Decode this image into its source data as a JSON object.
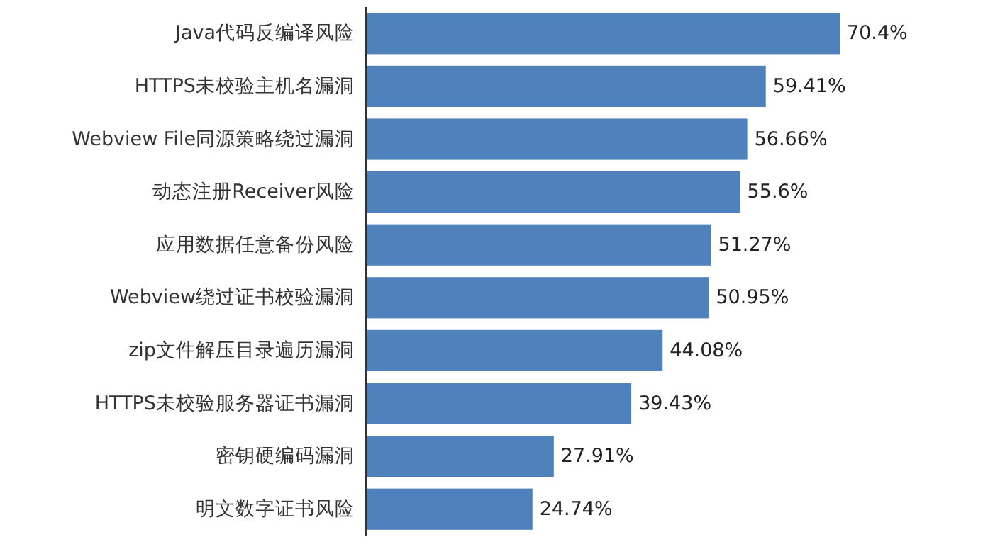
{
  "chart_data": {
    "type": "bar",
    "orientation": "horizontal",
    "categories": [
      "Java代码反编译风险",
      "HTTPS未校验主机名漏洞",
      "Webview File同源策略绕过漏洞",
      "动态注册Receiver风险",
      "应用数据任意备份风险",
      "Webview绕过证书校验漏洞",
      "zip文件解压目录遍历漏洞",
      "HTTPS未校验服务器证书漏洞",
      "密钥硬编码漏洞",
      "明文数字证书风险"
    ],
    "values": [
      70.4,
      59.41,
      56.66,
      55.6,
      51.27,
      50.95,
      44.08,
      39.43,
      27.91,
      24.74
    ],
    "value_labels": [
      "70.4%",
      "59.41%",
      "56.66%",
      "55.6%",
      "51.27%",
      "50.95%",
      "44.08%",
      "39.43%",
      "27.91%",
      "24.74%"
    ],
    "color": "#4f81bd"
  }
}
